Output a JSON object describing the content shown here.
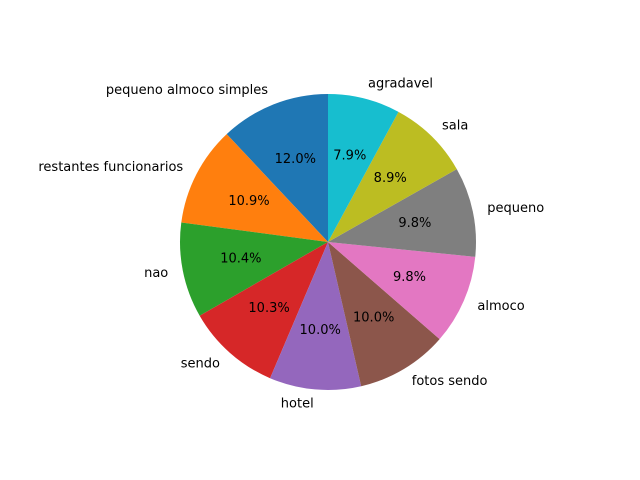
{
  "chart_data": {
    "type": "pie",
    "title": "",
    "start_angle_deg": 90,
    "direction": "counterclockwise",
    "categories": [
      "pequeno almoco simples",
      "restantes funcionarios",
      "nao",
      "sendo",
      "hotel",
      "fotos sendo",
      "almoco",
      "pequeno",
      "sala",
      "agradavel"
    ],
    "values": [
      12.0,
      10.9,
      10.4,
      10.3,
      10.0,
      10.0,
      9.8,
      9.8,
      8.9,
      7.9
    ],
    "percent_labels": [
      "12.0%",
      "10.9%",
      "10.4%",
      "10.3%",
      "10.0%",
      "10.0%",
      "9.8%",
      "9.8%",
      "8.9%",
      "7.9%"
    ],
    "colors": [
      "#1f77b4",
      "#ff7f0e",
      "#2ca02c",
      "#d62728",
      "#9467bd",
      "#8c564b",
      "#e377c2",
      "#7f7f7f",
      "#bcbd22",
      "#17becf"
    ]
  }
}
